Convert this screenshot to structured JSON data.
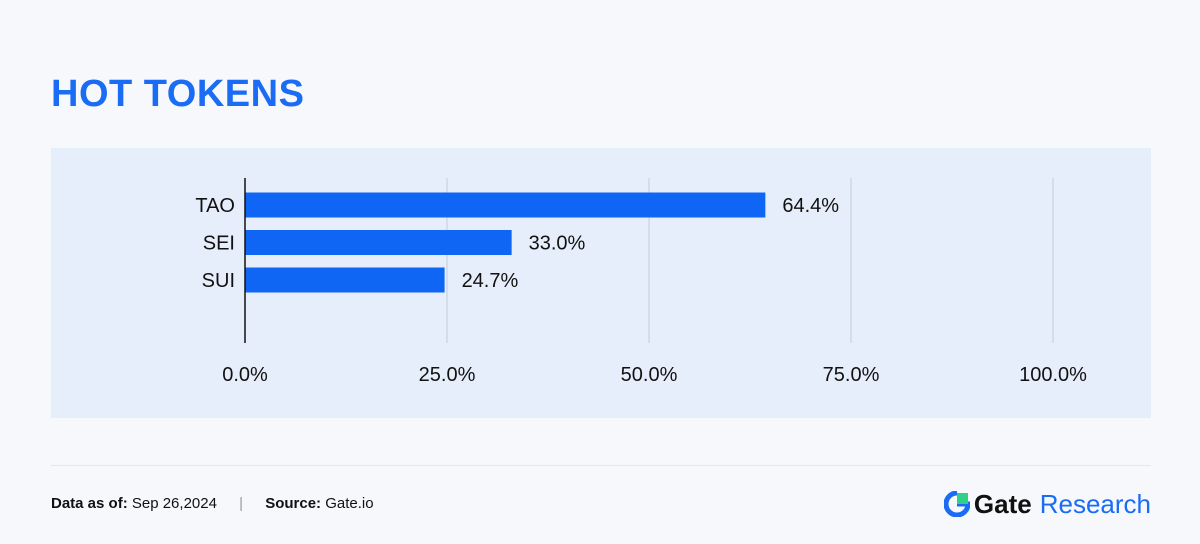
{
  "title": "HOT TOKENS",
  "chart_data": {
    "type": "bar",
    "orientation": "horizontal",
    "categories": [
      "TAO",
      "SEI",
      "SUI"
    ],
    "values": [
      64.4,
      33.0,
      24.7
    ],
    "value_labels": [
      "64.4%",
      "33.0%",
      "24.7%"
    ],
    "xlim": [
      0,
      100
    ],
    "x_ticks": [
      0,
      25,
      50,
      75,
      100
    ],
    "x_tick_labels": [
      "0.0%",
      "25.0%",
      "50.0%",
      "75.0%",
      "100.0%"
    ],
    "grid": "vertical",
    "bar_color": "#0f66f5"
  },
  "footer": {
    "date_label": "Data as of:",
    "date_value": "Sep 26,2024",
    "source_label": "Source:",
    "source_value": "Gate.io",
    "brand_gate": "Gate",
    "brand_research": "Research"
  }
}
